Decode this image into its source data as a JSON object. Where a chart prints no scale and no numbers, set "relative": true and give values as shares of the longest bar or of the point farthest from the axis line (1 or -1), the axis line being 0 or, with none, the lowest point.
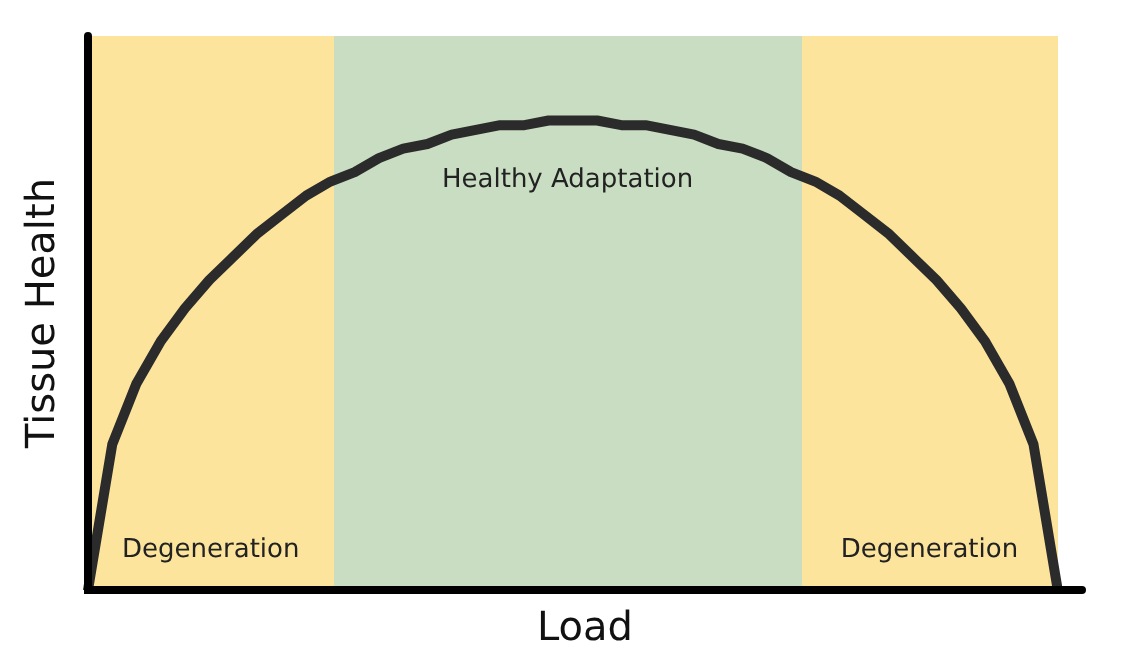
{
  "chart_data": {
    "type": "line",
    "xlabel": "Load",
    "ylabel": "Tissue Health",
    "relative": true,
    "grid": false,
    "legend": false,
    "marker": "none",
    "line_style": "solid",
    "categories": [
      null,
      null,
      null,
      null,
      null,
      null,
      null,
      null,
      null,
      null,
      null,
      null,
      null,
      null,
      null,
      null,
      null,
      null,
      null,
      null,
      null,
      null,
      null,
      null,
      null,
      null,
      null,
      null,
      null,
      null,
      null,
      null,
      null,
      null,
      null,
      null,
      null,
      null,
      null,
      null,
      null,
      null
    ],
    "series": [
      {
        "color": "#2b2b2b",
        "values": [
          0,
          0.31,
          0.44,
          0.53,
          0.6,
          0.66,
          0.71,
          0.76,
          0.8,
          0.84,
          0.87,
          0.89,
          0.92,
          0.94,
          0.95,
          0.97,
          0.98,
          0.99,
          0.99,
          1,
          1,
          1,
          0.99,
          0.99,
          0.98,
          0.97,
          0.95,
          0.94,
          0.92,
          0.89,
          0.87,
          0.84,
          0.8,
          0.76,
          0.71,
          0.66,
          0.6,
          0.53,
          0.44,
          0.31,
          0,
          null
        ]
      }
    ],
    "annotations": [
      "Degeneration",
      "Healthy Adaptation",
      "Degeneration"
    ]
  }
}
